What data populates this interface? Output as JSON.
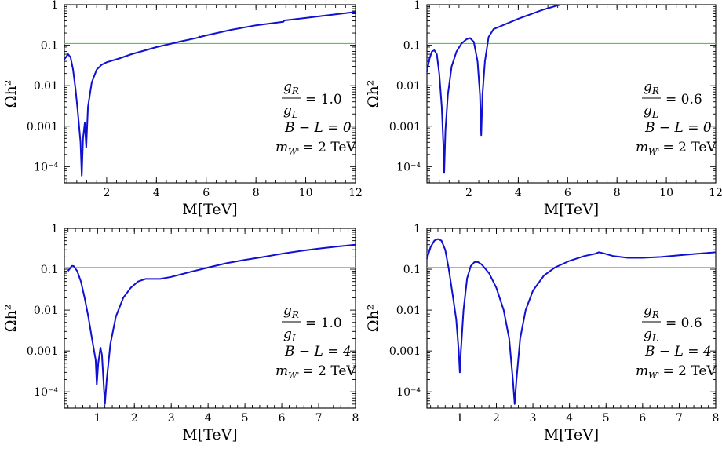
{
  "chart_data": [
    {
      "type": "line",
      "xlabel": "M[TeV]",
      "ylabel": "Ωh²",
      "xlim": [
        0.3,
        12
      ],
      "ylim": [
        5e-05,
        1
      ],
      "ylog": true,
      "x_ticks": [
        2,
        4,
        6,
        8,
        10,
        12
      ],
      "x_tick_labels": [
        "2",
        "4",
        "6",
        "8",
        "10",
        "12"
      ],
      "y_tick_labels": [
        "1",
        "0.1",
        "0.01",
        "0.001",
        "10⁻⁴"
      ],
      "reference_line": {
        "y": 0.11,
        "color": "#33dd33"
      },
      "annotation": {
        "ratio_num": "g",
        "ratio_num_sub": "R",
        "ratio_den": "g",
        "ratio_den_sub": "L",
        "ratio_value": "= 1.0",
        "bl": "B − L = 0",
        "mw_prefix": "m",
        "mw_sub": "W'",
        "mw_value": "= 2 TeV"
      },
      "series": [
        {
          "color": "#1010d0",
          "points": [
            [
              0.3,
              0.045
            ],
            [
              0.45,
              0.06
            ],
            [
              0.55,
              0.05
            ],
            [
              0.65,
              0.025
            ],
            [
              0.75,
              0.008
            ],
            [
              0.85,
              0.002
            ],
            [
              0.95,
              0.0004
            ],
            [
              1.0,
              6e-05
            ],
            [
              1.05,
              0.0005
            ],
            [
              1.12,
              0.0012
            ],
            [
              1.18,
              0.0003
            ],
            [
              1.25,
              0.003
            ],
            [
              1.4,
              0.012
            ],
            [
              1.6,
              0.025
            ],
            [
              1.8,
              0.033
            ],
            [
              2.0,
              0.038
            ],
            [
              2.5,
              0.047
            ],
            [
              3.0,
              0.06
            ],
            [
              4.0,
              0.09
            ],
            [
              5.0,
              0.125
            ],
            [
              5.7,
              0.155
            ],
            [
              5.72,
              0.165
            ],
            [
              5.75,
              0.16
            ],
            [
              6.0,
              0.175
            ],
            [
              7.0,
              0.24
            ],
            [
              8.0,
              0.31
            ],
            [
              9.1,
              0.38
            ],
            [
              9.15,
              0.41
            ],
            [
              10.0,
              0.47
            ],
            [
              11.0,
              0.56
            ],
            [
              12.0,
              0.66
            ]
          ]
        }
      ]
    },
    {
      "type": "line",
      "xlabel": "M[TeV]",
      "ylabel": "Ωh²",
      "xlim": [
        0.3,
        12
      ],
      "ylim": [
        5e-05,
        1
      ],
      "ylog": true,
      "x_ticks": [
        2,
        4,
        6,
        8,
        10,
        12
      ],
      "x_tick_labels": [
        "2",
        "4",
        "6",
        "8",
        "10",
        "12"
      ],
      "y_tick_labels": [
        "1",
        "0.1",
        "0.01",
        "0.001",
        "10⁻⁴"
      ],
      "reference_line": {
        "y": 0.11,
        "color": "#33dd33"
      },
      "annotation": {
        "ratio_num": "g",
        "ratio_num_sub": "R",
        "ratio_den": "g",
        "ratio_den_sub": "L",
        "ratio_value": "= 0.6",
        "bl": "B − L = 0",
        "mw_prefix": "m",
        "mw_sub": "W'",
        "mw_value": "= 2 TeV"
      },
      "series": [
        {
          "color": "#1010d0",
          "points": [
            [
              0.3,
              0.022
            ],
            [
              0.4,
              0.045
            ],
            [
              0.5,
              0.07
            ],
            [
              0.6,
              0.075
            ],
            [
              0.7,
              0.06
            ],
            [
              0.8,
              0.02
            ],
            [
              0.9,
              0.003
            ],
            [
              0.97,
              0.0003
            ],
            [
              1.0,
              7e-05
            ],
            [
              1.05,
              0.0008
            ],
            [
              1.15,
              0.006
            ],
            [
              1.3,
              0.03
            ],
            [
              1.5,
              0.07
            ],
            [
              1.7,
              0.11
            ],
            [
              1.9,
              0.14
            ],
            [
              2.05,
              0.15
            ],
            [
              2.2,
              0.12
            ],
            [
              2.35,
              0.04
            ],
            [
              2.45,
              0.006
            ],
            [
              2.5,
              0.0006
            ],
            [
              2.55,
              0.006
            ],
            [
              2.65,
              0.04
            ],
            [
              2.8,
              0.16
            ],
            [
              3.0,
              0.25
            ],
            [
              4.0,
              0.45
            ],
            [
              5.0,
              0.75
            ],
            [
              5.7,
              1.0
            ]
          ]
        }
      ]
    },
    {
      "type": "line",
      "xlabel": "M[TeV]",
      "ylabel": "Ωh²",
      "xlim": [
        0.1,
        8
      ],
      "ylim": [
        5e-05,
        1
      ],
      "ylog": true,
      "x_ticks": [
        1,
        2,
        3,
        4,
        5,
        6,
        7,
        8
      ],
      "x_tick_labels": [
        "1",
        "2",
        "3",
        "4",
        "5",
        "6",
        "7",
        "8"
      ],
      "y_tick_labels": [
        "1",
        "0.1",
        "0.01",
        "0.001",
        "10⁻⁴"
      ],
      "reference_line": {
        "y": 0.11,
        "color": "#33dd33"
      },
      "annotation": {
        "ratio_num": "g",
        "ratio_num_sub": "R",
        "ratio_den": "g",
        "ratio_den_sub": "L",
        "ratio_value": "= 1.0",
        "bl": "B − L = 4",
        "mw_prefix": "m",
        "mw_sub": "W'",
        "mw_value": "= 2 TeV"
      },
      "series": [
        {
          "color": "#1010d0",
          "points": [
            [
              0.2,
              0.09
            ],
            [
              0.3,
              0.12
            ],
            [
              0.35,
              0.12
            ],
            [
              0.45,
              0.09
            ],
            [
              0.55,
              0.05
            ],
            [
              0.65,
              0.02
            ],
            [
              0.75,
              0.007
            ],
            [
              0.85,
              0.002
            ],
            [
              0.95,
              0.0006
            ],
            [
              0.98,
              0.00015
            ],
            [
              1.02,
              0.0005
            ],
            [
              1.08,
              0.0012
            ],
            [
              1.12,
              0.0008
            ],
            [
              1.18,
              0.0001
            ],
            [
              1.2,
              5e-05
            ],
            [
              1.25,
              0.0002
            ],
            [
              1.35,
              0.0015
            ],
            [
              1.5,
              0.007
            ],
            [
              1.7,
              0.02
            ],
            [
              1.9,
              0.035
            ],
            [
              2.1,
              0.05
            ],
            [
              2.3,
              0.058
            ],
            [
              2.5,
              0.058
            ],
            [
              2.7,
              0.058
            ],
            [
              3.0,
              0.065
            ],
            [
              3.5,
              0.085
            ],
            [
              4.0,
              0.11
            ],
            [
              4.5,
              0.14
            ],
            [
              5.0,
              0.17
            ],
            [
              5.5,
              0.2
            ],
            [
              6.0,
              0.24
            ],
            [
              6.5,
              0.28
            ],
            [
              7.0,
              0.32
            ],
            [
              7.5,
              0.36
            ],
            [
              8.0,
              0.4
            ]
          ]
        }
      ]
    },
    {
      "type": "line",
      "xlabel": "M[TeV]",
      "ylabel": "Ωh²",
      "xlim": [
        0.1,
        8
      ],
      "ylim": [
        5e-05,
        1
      ],
      "ylog": true,
      "x_ticks": [
        1,
        2,
        3,
        4,
        5,
        6,
        7,
        8
      ],
      "x_tick_labels": [
        "1",
        "2",
        "3",
        "4",
        "5",
        "6",
        "7",
        "8"
      ],
      "y_tick_labels": [
        "1",
        "0.1",
        "0.01",
        "0.001",
        "10⁻⁴"
      ],
      "reference_line": {
        "y": 0.11,
        "color": "#33dd33"
      },
      "annotation": {
        "ratio_num": "g",
        "ratio_num_sub": "R",
        "ratio_den": "g",
        "ratio_den_sub": "L",
        "ratio_value": "= 0.6",
        "bl": "B − L = 4",
        "mw_prefix": "m",
        "mw_sub": "W'",
        "mw_value": "= 2 TeV"
      },
      "series": [
        {
          "color": "#1010d0",
          "points": [
            [
              0.1,
              0.18
            ],
            [
              0.2,
              0.35
            ],
            [
              0.3,
              0.5
            ],
            [
              0.4,
              0.55
            ],
            [
              0.5,
              0.5
            ],
            [
              0.6,
              0.3
            ],
            [
              0.7,
              0.1
            ],
            [
              0.8,
              0.025
            ],
            [
              0.9,
              0.006
            ],
            [
              0.97,
              0.001
            ],
            [
              1.0,
              0.0003
            ],
            [
              1.03,
              0.001
            ],
            [
              1.1,
              0.01
            ],
            [
              1.2,
              0.06
            ],
            [
              1.3,
              0.12
            ],
            [
              1.4,
              0.15
            ],
            [
              1.5,
              0.15
            ],
            [
              1.6,
              0.13
            ],
            [
              1.8,
              0.08
            ],
            [
              2.0,
              0.035
            ],
            [
              2.2,
              0.01
            ],
            [
              2.35,
              0.002
            ],
            [
              2.45,
              0.0002
            ],
            [
              2.5,
              5e-05
            ],
            [
              2.55,
              0.0002
            ],
            [
              2.65,
              0.002
            ],
            [
              2.8,
              0.01
            ],
            [
              3.0,
              0.03
            ],
            [
              3.3,
              0.07
            ],
            [
              3.6,
              0.11
            ],
            [
              4.0,
              0.16
            ],
            [
              4.4,
              0.21
            ],
            [
              4.7,
              0.24
            ],
            [
              4.8,
              0.26
            ],
            [
              4.9,
              0.25
            ],
            [
              5.2,
              0.21
            ],
            [
              5.6,
              0.19
            ],
            [
              6.0,
              0.19
            ],
            [
              6.5,
              0.2
            ],
            [
              7.0,
              0.22
            ],
            [
              7.5,
              0.24
            ],
            [
              8.0,
              0.26
            ]
          ]
        }
      ]
    }
  ]
}
